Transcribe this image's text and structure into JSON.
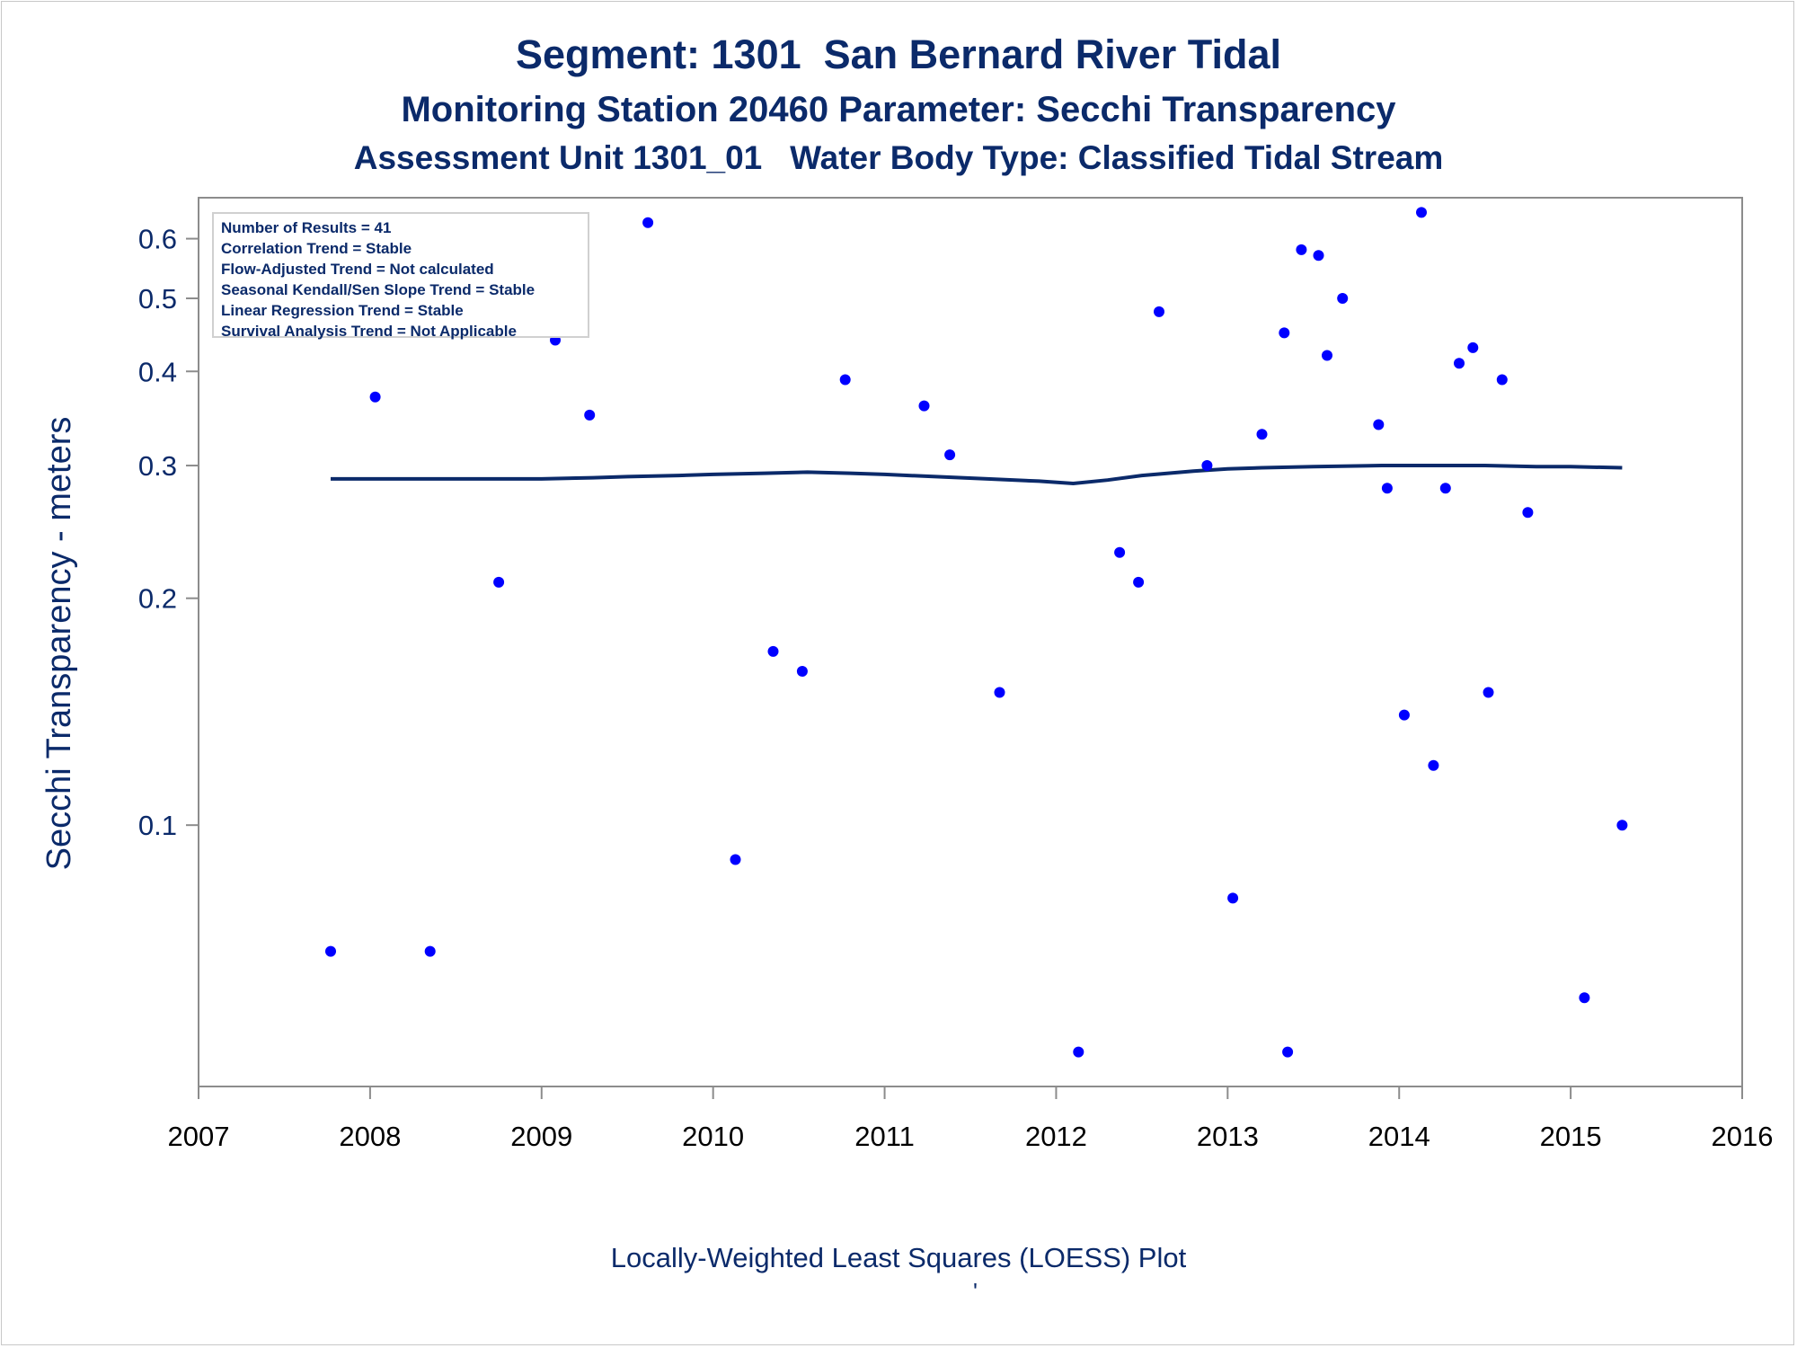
{
  "titles": {
    "line1": "Segment: 1301  San Bernard River Tidal",
    "line2": "Monitoring Station 20460 Parameter: Secchi Transparency",
    "line3": "Assessment Unit 1301_01   Water Body Type: Classified Tidal Stream"
  },
  "stats_box": [
    "Number of Results = 41",
    "Correlation Trend = Stable",
    "Flow-Adjusted Trend = Not calculated",
    "Seasonal Kendall/Sen Slope Trend = Stable",
    "Linear Regression Trend = Stable",
    "Survival Analysis Trend = Not Applicable"
  ],
  "footnote": "Locally-Weighted Least Squares (LOESS) Plot",
  "footnote_mark": "'",
  "colors": {
    "text": "#0b2a6a",
    "points": "#0000ff",
    "loess": "#0b2a6a",
    "axis": "#8c8c8c"
  },
  "chart_data": {
    "type": "scatter",
    "ylabel": "Secchi Transparency - meters",
    "xlabel": "",
    "y_scale": "log",
    "xlim": [
      2007,
      2016
    ],
    "ylim": [
      0.045,
      0.68
    ],
    "x_ticks": [
      "2007",
      "2008",
      "2009",
      "2010",
      "2011",
      "2012",
      "2013",
      "2014",
      "2015",
      "2016"
    ],
    "y_ticks": [
      {
        "label": "0.1",
        "value": 0.1
      },
      {
        "label": "0.2",
        "value": 0.2
      },
      {
        "label": "0.3",
        "value": 0.3
      },
      {
        "label": "0.4",
        "value": 0.4
      },
      {
        "label": "0.5",
        "value": 0.5
      },
      {
        "label": "0.6",
        "value": 0.6
      }
    ],
    "grid": false,
    "series": [
      {
        "kind": "points",
        "x": [
          2007.77,
          2008.03,
          2008.35,
          2008.75,
          2009.0,
          2009.08,
          2009.28,
          2009.62,
          2010.13,
          2010.35,
          2010.52,
          2010.77,
          2011.23,
          2011.38,
          2011.67,
          2012.13,
          2012.37,
          2012.48,
          2012.6,
          2012.88,
          2013.03,
          2013.2,
          2013.33,
          2013.35,
          2013.43,
          2013.53,
          2013.58,
          2013.67,
          2013.88,
          2013.93,
          2014.03,
          2014.13,
          2014.2,
          2014.27,
          2014.35,
          2014.43,
          2014.52,
          2014.6,
          2014.75,
          2015.08,
          2015.3
        ],
        "y": [
          0.068,
          0.37,
          0.068,
          0.21,
          0.58,
          0.44,
          0.35,
          0.63,
          0.09,
          0.17,
          0.16,
          0.39,
          0.36,
          0.31,
          0.15,
          0.05,
          0.23,
          0.21,
          0.48,
          0.3,
          0.08,
          0.33,
          0.45,
          0.05,
          0.58,
          0.57,
          0.42,
          0.5,
          0.34,
          0.28,
          0.14,
          0.65,
          0.12,
          0.28,
          0.41,
          0.43,
          0.15,
          0.39,
          0.26,
          0.059,
          0.1
        ]
      },
      {
        "kind": "loess",
        "x": [
          2007.77,
          2008.0,
          2008.5,
          2009.0,
          2009.3,
          2009.5,
          2009.8,
          2010.0,
          2010.3,
          2010.55,
          2010.8,
          2011.0,
          2011.3,
          2011.6,
          2011.9,
          2012.1,
          2012.3,
          2012.5,
          2012.8,
          2013.0,
          2013.2,
          2013.5,
          2013.9,
          2014.2,
          2014.5,
          2014.8,
          2015.0,
          2015.3
        ],
        "y": [
          0.288,
          0.288,
          0.288,
          0.288,
          0.289,
          0.29,
          0.291,
          0.292,
          0.293,
          0.294,
          0.293,
          0.292,
          0.29,
          0.288,
          0.286,
          0.284,
          0.287,
          0.291,
          0.295,
          0.297,
          0.298,
          0.299,
          0.3,
          0.3,
          0.3,
          0.299,
          0.299,
          0.298
        ]
      }
    ]
  }
}
